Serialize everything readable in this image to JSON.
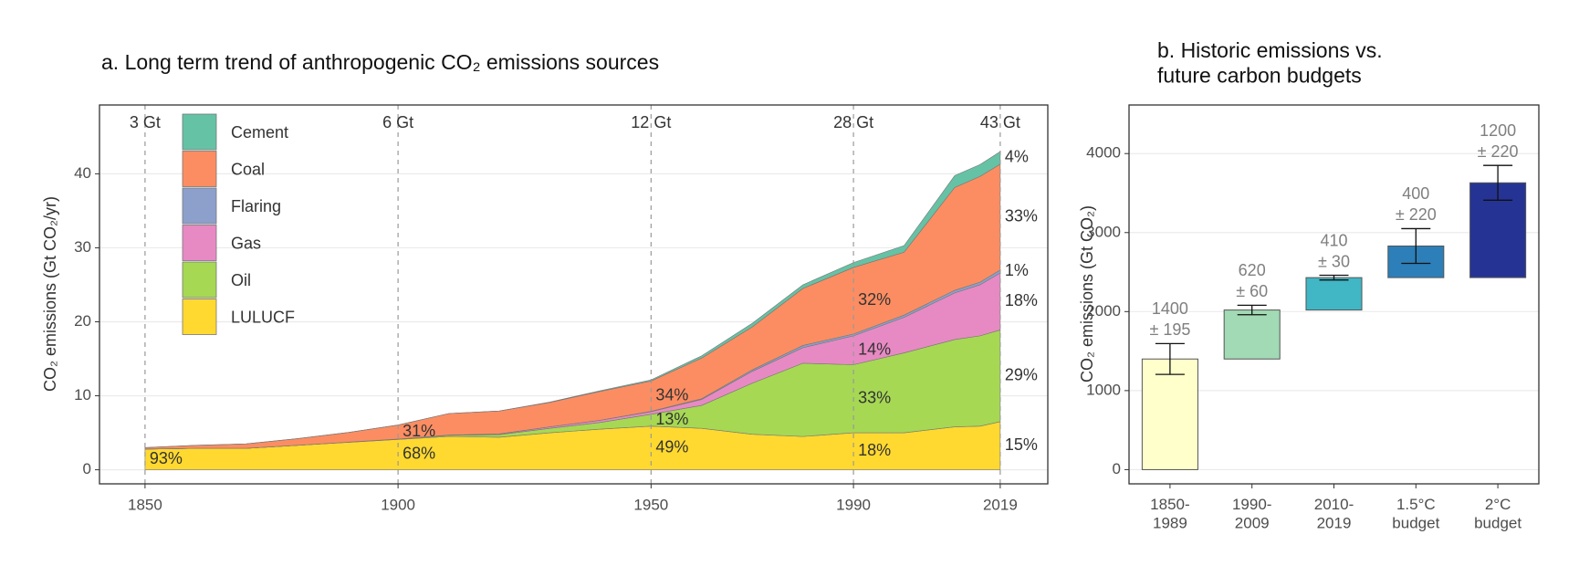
{
  "chart_data": [
    {
      "type": "area",
      "title": "a. Long term trend of anthropogenic CO₂ emissions sources",
      "y_label": "CO₂ emissions (Gt CO₂/yr)",
      "x": [
        1850,
        1860,
        1870,
        1880,
        1890,
        1900,
        1910,
        1920,
        1930,
        1940,
        1950,
        1960,
        1970,
        1980,
        1990,
        2000,
        2010,
        2015,
        2019
      ],
      "series": [
        {
          "name": "LULUCF",
          "color": "#ffd92f",
          "values": [
            2.8,
            2.9,
            2.9,
            3.3,
            3.7,
            4.1,
            4.5,
            4.4,
            5.0,
            5.5,
            5.9,
            5.6,
            4.8,
            4.5,
            5.0,
            5.0,
            5.8,
            5.9,
            6.5
          ]
        },
        {
          "name": "Oil",
          "color": "#a6d854",
          "values": [
            0,
            0,
            0,
            0,
            0.03,
            0.05,
            0.15,
            0.35,
            0.6,
            0.9,
            1.6,
            3.1,
            6.9,
            9.9,
            9.2,
            10.8,
            11.8,
            12.2,
            12.4
          ]
        },
        {
          "name": "Gas",
          "color": "#e78ac3",
          "values": [
            0,
            0,
            0,
            0,
            0,
            0,
            0.05,
            0.1,
            0.2,
            0.3,
            0.35,
            0.8,
            1.6,
            2.1,
            3.9,
            4.8,
            6.3,
            6.9,
            7.7
          ]
        },
        {
          "name": "Flaring",
          "color": "#8da0cb",
          "values": [
            0,
            0,
            0,
            0,
            0,
            0,
            0,
            0,
            0,
            0,
            0.05,
            0.1,
            0.2,
            0.3,
            0.25,
            0.3,
            0.35,
            0.35,
            0.4
          ]
        },
        {
          "name": "Coal",
          "color": "#fc8d62",
          "values": [
            0.2,
            0.4,
            0.6,
            0.9,
            1.3,
            1.9,
            2.9,
            3.1,
            3.3,
            3.9,
            4.1,
            5.5,
            5.8,
            7.7,
            9.0,
            8.5,
            13.9,
            14.3,
            14.3
          ]
        },
        {
          "name": "Cement",
          "color": "#66c2a5",
          "values": [
            0,
            0,
            0,
            0,
            0,
            0,
            0,
            0,
            0.05,
            0.1,
            0.15,
            0.3,
            0.5,
            0.5,
            0.65,
            0.9,
            1.6,
            1.6,
            1.7
          ]
        }
      ],
      "xlim": [
        1841,
        2028.4
      ],
      "ylim": [
        -1.9,
        49.3
      ],
      "xticks": [
        1850,
        1900,
        1950,
        1990,
        2019
      ],
      "yticks": [
        0,
        10,
        20,
        30,
        40
      ],
      "grid": true,
      "legend": "top-left",
      "markers": [
        {
          "x": 1850,
          "label": "3 Gt",
          "shares": [
            {
              "series": "LULUCF",
              "label": "93%"
            }
          ]
        },
        {
          "x": 1900,
          "label": "6 Gt",
          "shares": [
            {
              "series": "Coal",
              "label": "31%"
            },
            {
              "series": "LULUCF",
              "label": "68%"
            }
          ]
        },
        {
          "x": 1950,
          "label": "12 Gt",
          "shares": [
            {
              "series": "Coal",
              "label": "34%"
            },
            {
              "series": "Oil",
              "label": "13%"
            },
            {
              "series": "LULUCF",
              "label": "49%"
            }
          ]
        },
        {
          "x": 1990,
          "label": "28 Gt",
          "shares": [
            {
              "series": "Coal",
              "label": "32%"
            },
            {
              "series": "Gas",
              "label": "14%"
            },
            {
              "series": "Oil",
              "label": "33%"
            },
            {
              "series": "LULUCF",
              "label": "18%"
            }
          ]
        },
        {
          "x": 2019,
          "label": "43 Gt",
          "shares": [
            {
              "series": "Cement",
              "label": "4%"
            },
            {
              "series": "Coal",
              "label": "33%"
            },
            {
              "series": "Flaring",
              "label": "1%"
            },
            {
              "series": "Gas",
              "label": "18%"
            },
            {
              "series": "Oil",
              "label": "29%"
            },
            {
              "series": "LULUCF",
              "label": "15%"
            }
          ]
        }
      ]
    },
    {
      "type": "floating-bar",
      "title": "b. Historic emissions vs.\nfuture carbon budgets",
      "y_label": "CO₂ emissions (Gt CO₂)",
      "categories": [
        "1850-\n1989",
        "1990-\n2009",
        "2010-\n2019",
        "1.5°C\nbudget",
        "2°C\nbudget"
      ],
      "values": [
        1400,
        620,
        410,
        400,
        1200
      ],
      "errors": [
        195,
        60,
        30,
        220,
        220
      ],
      "error_labels": [
        "± 195",
        "± 60",
        "± 30",
        "± 220",
        "± 220"
      ],
      "colors": [
        "#ffffcc",
        "#a1dab4",
        "#41b6c4",
        "#2c7fb8",
        "#253494"
      ],
      "ylim": [
        -180,
        4615
      ],
      "yticks": [
        0,
        1000,
        2000,
        3000,
        4000
      ],
      "grid": true
    }
  ]
}
